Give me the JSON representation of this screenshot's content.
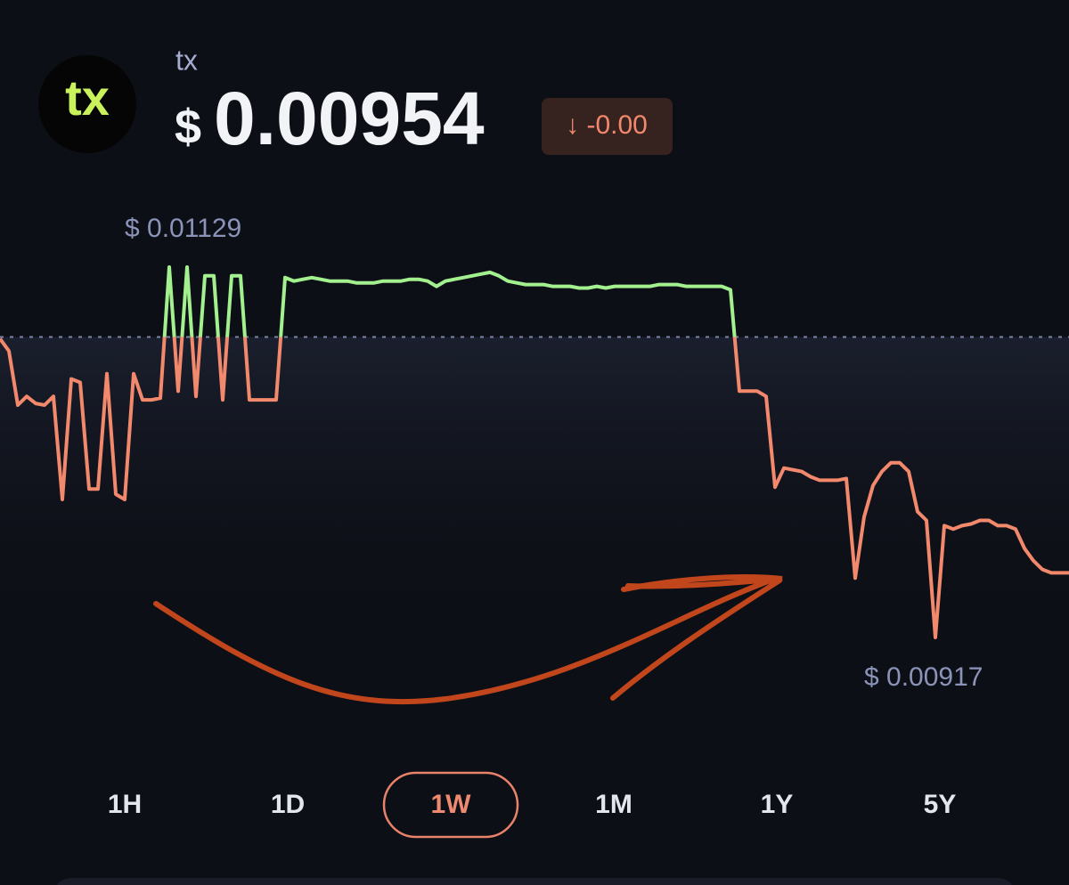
{
  "token": {
    "name": "tx",
    "price_symbol": "$",
    "price": "0.00954",
    "change": "↓ -0.00"
  },
  "chart_data": {
    "type": "line",
    "values": [
      0.01088,
      0.01081,
      0.0105,
      0.01055,
      0.01051,
      0.0105,
      0.01055,
      0.00996,
      0.01065,
      0.01063,
      0.01002,
      0.01002,
      0.01068,
      0.00999,
      0.00996,
      0.01068,
      0.01053,
      0.01053,
      0.01054,
      0.01129,
      0.01058,
      0.01129,
      0.01055,
      0.01124,
      0.01124,
      0.01053,
      0.01124,
      0.01124,
      0.01053,
      0.01053,
      0.01053,
      0.01053,
      0.01123,
      0.01121,
      0.01122,
      0.01123,
      0.01122,
      0.01121,
      0.01121,
      0.01121,
      0.0112,
      0.0112,
      0.0112,
      0.01121,
      0.01121,
      0.01121,
      0.01122,
      0.01122,
      0.01121,
      0.01118,
      0.01121,
      0.01122,
      0.01123,
      0.01124,
      0.01125,
      0.01126,
      0.01124,
      0.01121,
      0.0112,
      0.01119,
      0.01119,
      0.01119,
      0.01118,
      0.01118,
      0.01118,
      0.01117,
      0.01117,
      0.01118,
      0.01117,
      0.01118,
      0.01118,
      0.01118,
      0.01118,
      0.01118,
      0.01119,
      0.01119,
      0.01119,
      0.01118,
      0.01118,
      0.01118,
      0.01118,
      0.01118,
      0.01116,
      0.01058,
      0.01058,
      0.01058,
      0.01055,
      0.01003,
      0.01014,
      0.01013,
      0.01012,
      0.01009,
      0.01007,
      0.01007,
      0.01007,
      0.01008,
      0.00951,
      0.00986,
      0.01004,
      0.01012,
      0.01017,
      0.01017,
      0.01012,
      0.00989,
      0.00984,
      0.00917,
      0.00981,
      0.00979,
      0.00981,
      0.00982,
      0.00984,
      0.00984,
      0.00981,
      0.00981,
      0.00979,
      0.00968,
      0.00961,
      0.00956,
      0.00954,
      0.00954,
      0.00954
    ],
    "high": {
      "value": 0.01129,
      "label": "$ 0.01129"
    },
    "low": {
      "value": 0.00917,
      "label": "$ 0.00917"
    },
    "baseline": 0.01089,
    "colors": {
      "up": "#a3f08f",
      "down": "#f2896c"
    }
  },
  "ranges": [
    "1H",
    "1D",
    "1W",
    "1M",
    "1Y",
    "5Y"
  ],
  "selected_range": "1W"
}
